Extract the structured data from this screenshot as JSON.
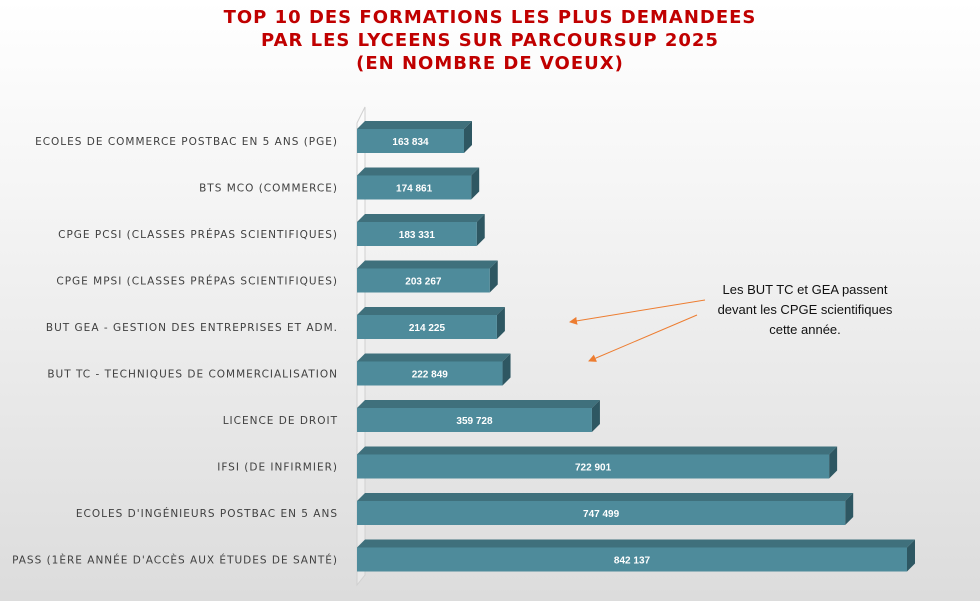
{
  "chart_data": {
    "type": "bar",
    "orientation": "horizontal",
    "title": [
      "TOP 10 DES FORMATIONS LES PLUS DEMANDEES",
      "PAR LES LYCEENS SUR PARCOURSUP 2025",
      "(EN NOMBRE DE VOEUX)"
    ],
    "categories": [
      "ECOLES DE COMMERCE POSTBAC EN 5 ANS (PGE)",
      "BTS MCO (COMMERCE)",
      "CPGE PCSI (CLASSES PRÉPAS SCIENTIFIQUES)",
      "CPGE MPSI (CLASSES PRÉPAS SCIENTIFIQUES)",
      "BUT GEA - GESTION DES ENTREPRISES ET ADM.",
      "BUT TC - TECHNIQUES DE COMMERCIALISATION",
      "LICENCE DE DROIT",
      "IFSI (DE INFIRMIER)",
      "ECOLES D'INGÉNIEURS POSTBAC EN 5 ANS",
      "PASS (1ÈRE ANNÉE D'ACCÈS AUX ÉTUDES DE SANTÉ)"
    ],
    "values": [
      163834,
      174861,
      183331,
      203267,
      214225,
      222849,
      359728,
      722901,
      747499,
      842137
    ],
    "value_labels": [
      "163 834",
      "174 861",
      "183 331",
      "203 267",
      "214 225",
      "222 849",
      "359 728",
      "722 901",
      "747 499",
      "842 137"
    ],
    "xlim": [
      0,
      842137
    ],
    "grid": false,
    "legend": "none",
    "style": "3d",
    "colors": {
      "bar_front": "#4e8b9b",
      "bar_top": "#3f707c",
      "bar_side": "#2e5762",
      "title": "#c00000",
      "arrow": "#ed7d31"
    },
    "annotation": {
      "lines": [
        "Les BUT TC et GEA passent",
        "devant les CPGE scientifiques",
        "cette année."
      ]
    }
  }
}
